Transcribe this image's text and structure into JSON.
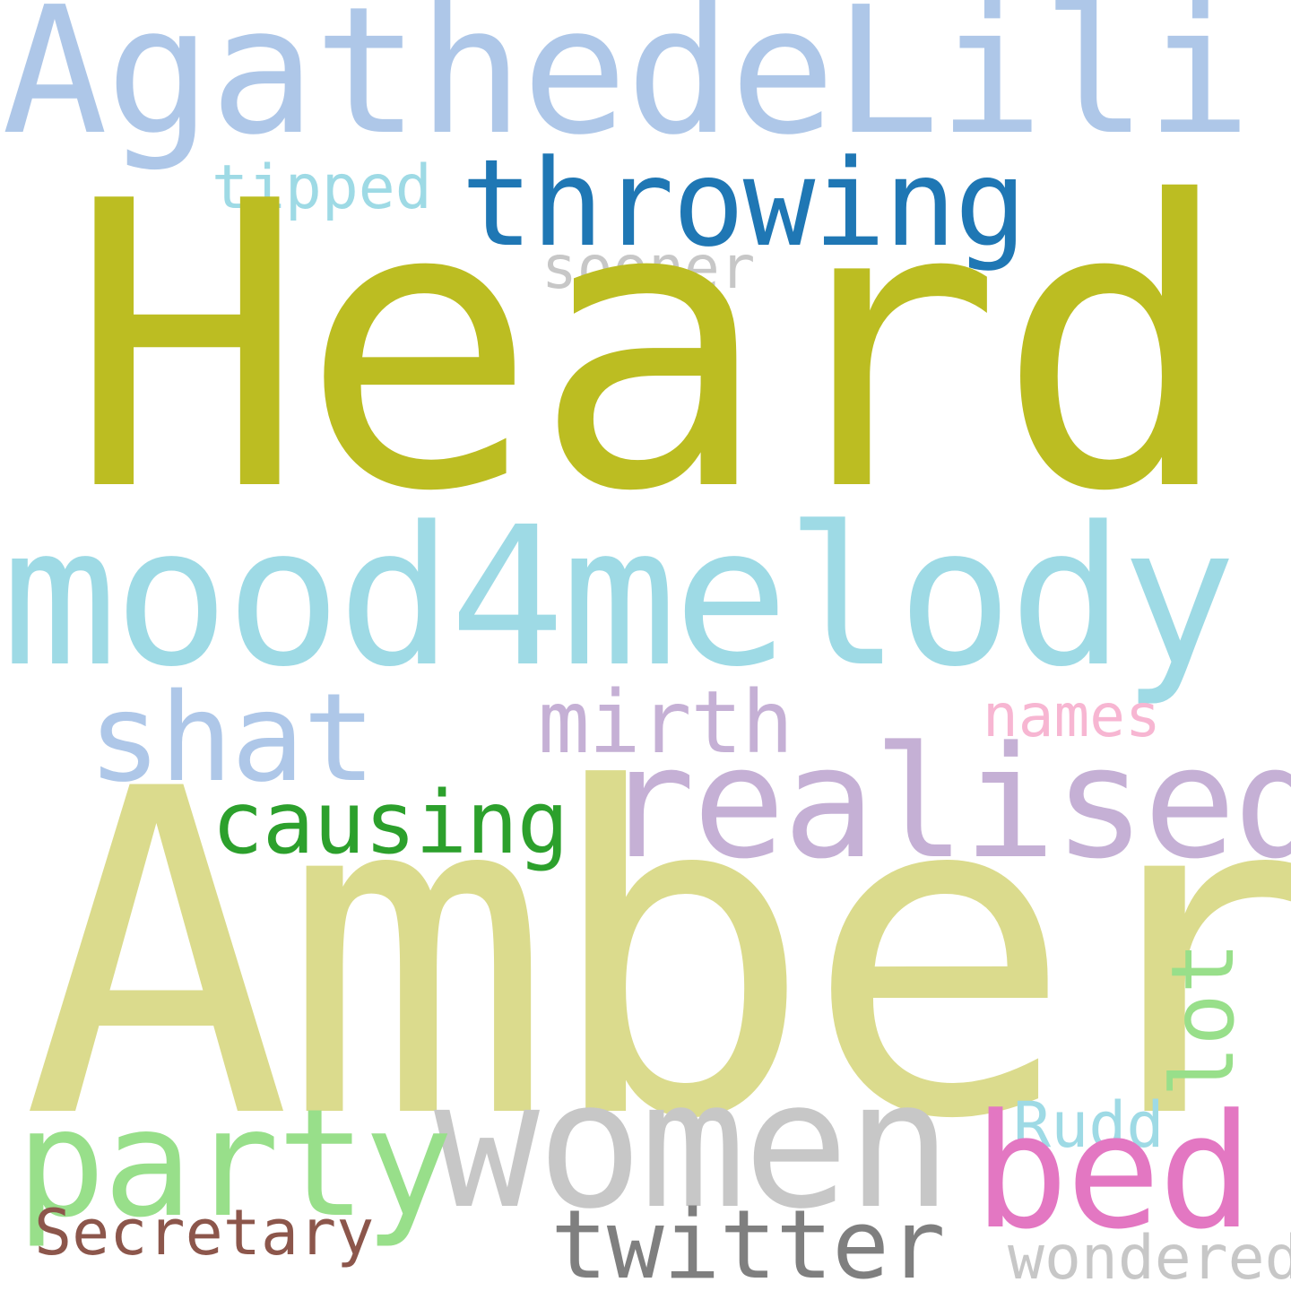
{
  "words": {
    "agathedelili": {
      "text": "AgathedeLili",
      "color": "#aec7e8"
    },
    "throwing": {
      "text": "throwing",
      "color": "#1f77b4"
    },
    "tipped": {
      "text": "tipped",
      "color": "#9edae5"
    },
    "sooner": {
      "text": "sooner",
      "color": "#c7c7c7"
    },
    "heard": {
      "text": "Heard",
      "color": "#bcbd22"
    },
    "mood4melody": {
      "text": "mood4melody",
      "color": "#9edae5"
    },
    "shat": {
      "text": "shat",
      "color": "#aec7e8"
    },
    "mirth": {
      "text": "mirth",
      "color": "#c5b0d5"
    },
    "names": {
      "text": "names",
      "color": "#f7b6d2"
    },
    "realised": {
      "text": "realised",
      "color": "#c5b0d5"
    },
    "causing": {
      "text": "causing",
      "color": "#2ca02c"
    },
    "amber": {
      "text": "Amber",
      "color": "#dbdb8d"
    },
    "lot": {
      "text": "lot",
      "color": "#98df8a"
    },
    "women": {
      "text": "women",
      "color": "#c7c7c7"
    },
    "rudd": {
      "text": "Rudd",
      "color": "#9edae5"
    },
    "party": {
      "text": "party",
      "color": "#98df8a"
    },
    "bed": {
      "text": "bed",
      "color": "#e377c2"
    },
    "secretary": {
      "text": "Secretary",
      "color": "#8c564b"
    },
    "twitter": {
      "text": "twitter",
      "color": "#7f7f7f"
    },
    "wondered": {
      "text": "wondered",
      "color": "#c7c7c7"
    }
  }
}
